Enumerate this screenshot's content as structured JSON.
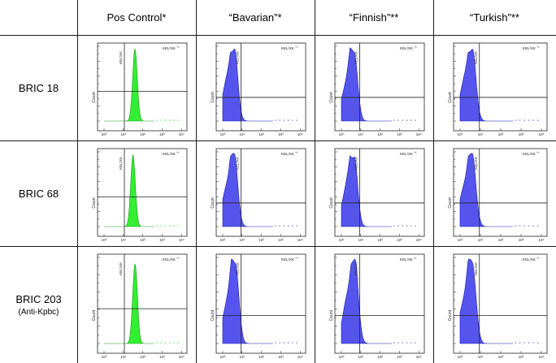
{
  "columns": [
    {
      "label": "Pos Control*",
      "color": "#33ee33",
      "stroke": "#159a15"
    },
    {
      "label": "“Bavarian”*",
      "color": "#5555ee",
      "stroke": "#1515a8"
    },
    {
      "label": "“Finnish”**",
      "color": "#5555ee",
      "stroke": "#1515a8"
    },
    {
      "label": "“Turkish”**",
      "color": "#5555ee",
      "stroke": "#1515a8"
    }
  ],
  "rows": [
    {
      "label": "BRIC 18",
      "sub": ""
    },
    {
      "label": "BRIC 68",
      "sub": ""
    },
    {
      "label": "BRIC 203",
      "sub": "(Anti-Kpbc)"
    }
  ],
  "plot_text": {
    "ylabel": "Count",
    "marker_label": "KEL/XK",
    "marker_superscript": "+/-",
    "x_ticks": [
      "10⁰",
      "10¹",
      "10²",
      "10³",
      "10⁴"
    ]
  },
  "chart_data": [
    {
      "type": "area",
      "row": "BRIC 18",
      "column": "Pos Control*",
      "peak_log": 1.6,
      "width": 0.12,
      "tail": 0.0,
      "color": "#33ee33"
    },
    {
      "type": "area",
      "row": "BRIC 18",
      "column": "“Bavarian”*",
      "peak_log": 0.6,
      "width": 0.18,
      "tail": 0.55,
      "color": "#5555ee"
    },
    {
      "type": "area",
      "row": "BRIC 18",
      "column": "“Finnish”**",
      "peak_log": 0.65,
      "width": 0.18,
      "tail": 0.55,
      "color": "#5555ee"
    },
    {
      "type": "area",
      "row": "BRIC 18",
      "column": "“Turkish”**",
      "peak_log": 0.6,
      "width": 0.18,
      "tail": 0.55,
      "color": "#5555ee"
    },
    {
      "type": "area",
      "row": "BRIC 68",
      "column": "Pos Control*",
      "peak_log": 1.5,
      "width": 0.12,
      "tail": 0.0,
      "color": "#33ee33"
    },
    {
      "type": "area",
      "row": "BRIC 68",
      "column": "“Bavarian”*",
      "peak_log": 0.6,
      "width": 0.18,
      "tail": 0.55,
      "color": "#5555ee"
    },
    {
      "type": "area",
      "row": "BRIC 68",
      "column": "“Finnish”**",
      "peak_log": 0.65,
      "width": 0.18,
      "tail": 0.55,
      "color": "#5555ee"
    },
    {
      "type": "area",
      "row": "BRIC 68",
      "column": "“Turkish”**",
      "peak_log": 0.6,
      "width": 0.18,
      "tail": 0.55,
      "color": "#5555ee"
    },
    {
      "type": "area",
      "row": "BRIC 203",
      "column": "Pos Control*",
      "peak_log": 1.6,
      "width": 0.12,
      "tail": 0.0,
      "color": "#33ee33"
    },
    {
      "type": "area",
      "row": "BRIC 203",
      "column": "“Bavarian”*",
      "peak_log": 0.65,
      "width": 0.18,
      "tail": 0.55,
      "color": "#5555ee"
    },
    {
      "type": "area",
      "row": "BRIC 203",
      "column": "“Finnish”**",
      "peak_log": 0.7,
      "width": 0.18,
      "tail": 0.55,
      "color": "#5555ee"
    },
    {
      "type": "area",
      "row": "BRIC 203",
      "column": "“Turkish”**",
      "peak_log": 0.6,
      "width": 0.18,
      "tail": 0.55,
      "color": "#5555ee"
    }
  ]
}
